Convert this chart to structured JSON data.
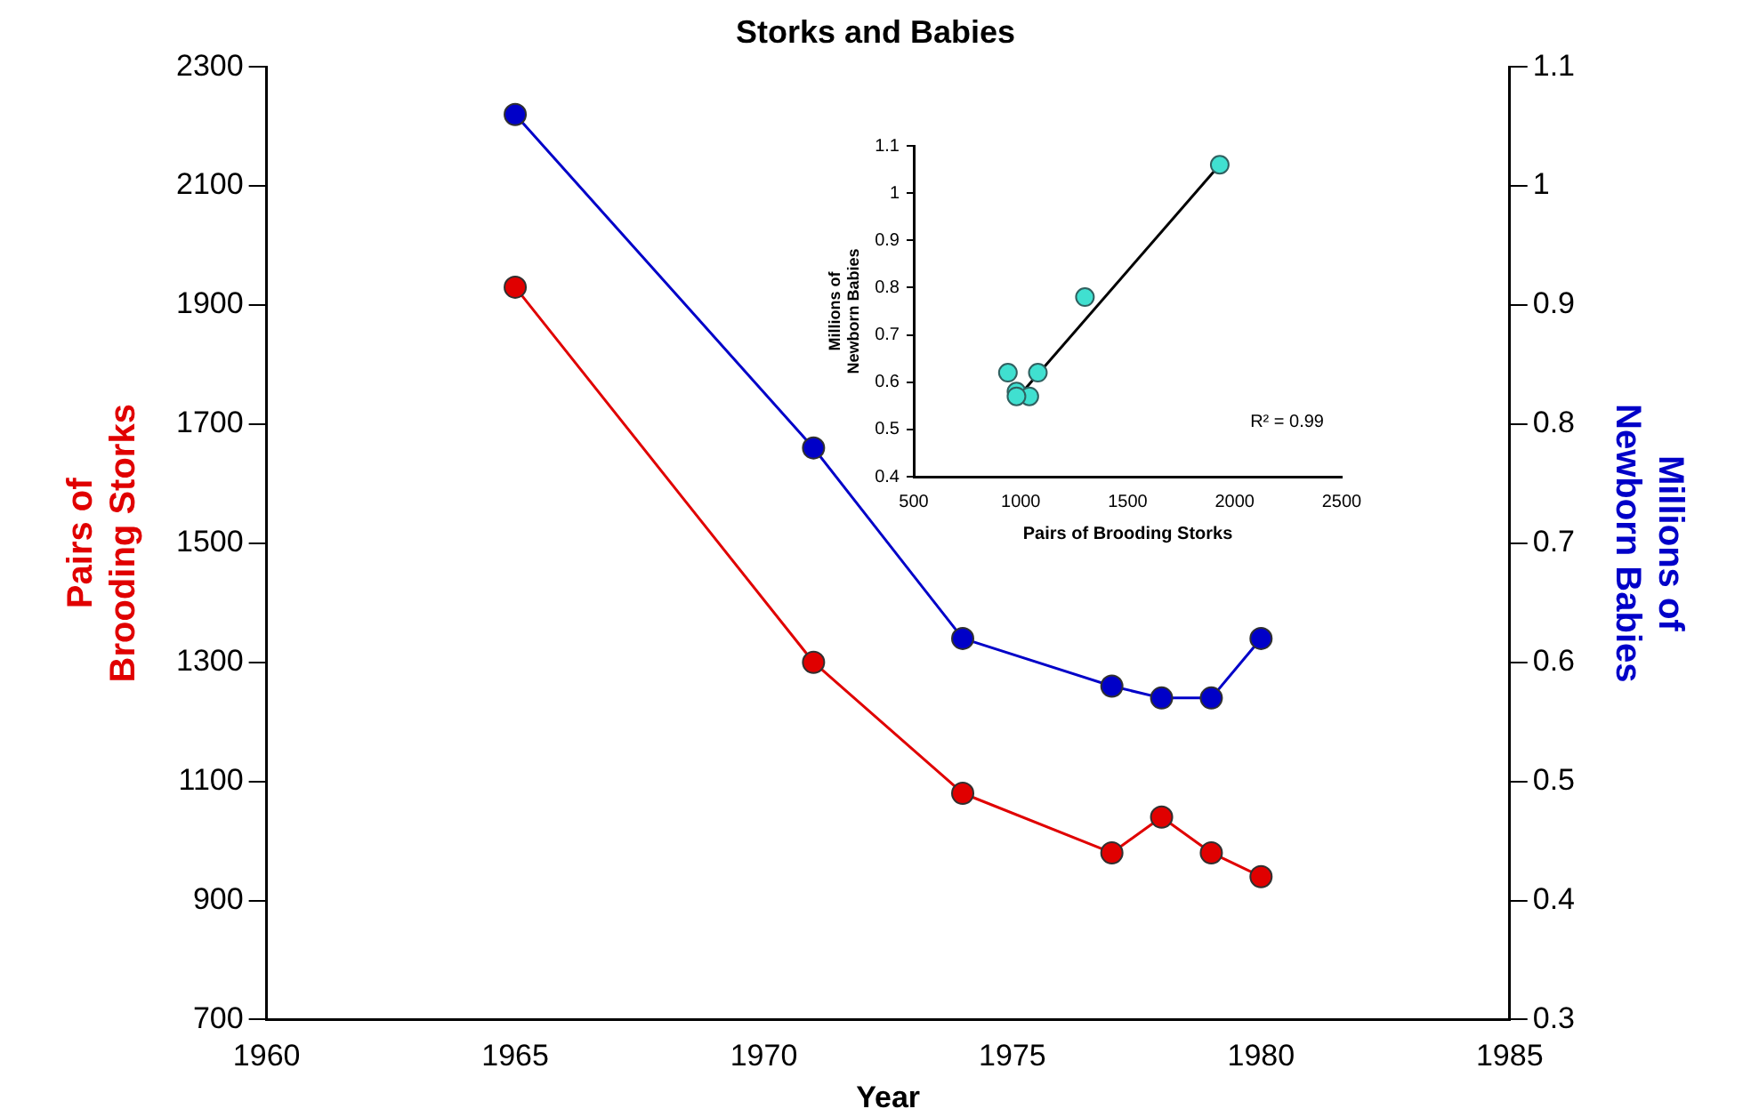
{
  "chart_data": [
    {
      "type": "line",
      "title": "Storks and Babies",
      "xlabel": "Year",
      "ylabel": "Pairs of Brooding Storks",
      "y2label": "Millions of Newborn Babies",
      "x": [
        1965,
        1971,
        1974,
        1977,
        1978,
        1979,
        1980
      ],
      "series": [
        {
          "color": "#e00000",
          "values": [
            1930,
            1300,
            1080,
            980,
            1040,
            980,
            940
          ]
        },
        {
          "color": "#0000c8",
          "axis": "y2",
          "values": [
            1.06,
            0.78,
            0.62,
            0.58,
            0.57,
            0.57,
            0.62
          ]
        }
      ],
      "xlim": [
        1960,
        1985
      ],
      "xticks": [
        1960,
        1965,
        1970,
        1975,
        1980,
        1985
      ],
      "ylim": [
        700,
        2300
      ],
      "yticks": [
        700,
        900,
        1100,
        1300,
        1500,
        1700,
        1900,
        2100,
        2300
      ],
      "y2lim": [
        0.3,
        1.1
      ],
      "y2ticks": [
        0.3,
        0.4,
        0.5,
        0.6,
        0.7,
        0.8,
        0.9,
        1,
        1.1
      ],
      "marker": "circle",
      "grid": false
    },
    {
      "type": "scatter",
      "xlabel": "Pairs of Brooding Storks",
      "ylabel": "Millions of Newborn Babies",
      "x": [
        1930,
        1300,
        1080,
        980,
        1040,
        980,
        940
      ],
      "series": [
        {
          "color": "#40e0d0",
          "values": [
            1.06,
            0.78,
            0.62,
            0.58,
            0.57,
            0.57,
            0.62
          ]
        },
        {
          "type": "line",
          "marker": "none",
          "color": "#000000",
          "x": [
            1000,
            1930
          ],
          "values": [
            0.575,
            1.06
          ]
        }
      ],
      "xlim": [
        500,
        2500
      ],
      "xticks": [
        500,
        1000,
        1500,
        2000,
        2500
      ],
      "ylim": [
        0.4,
        1.1
      ],
      "yticks": [
        0.4,
        0.5,
        0.6,
        0.7,
        0.8,
        0.9,
        1,
        1.1
      ],
      "annotations": [
        "R² = 0.99"
      ],
      "marker": "circle",
      "grid": false
    }
  ]
}
